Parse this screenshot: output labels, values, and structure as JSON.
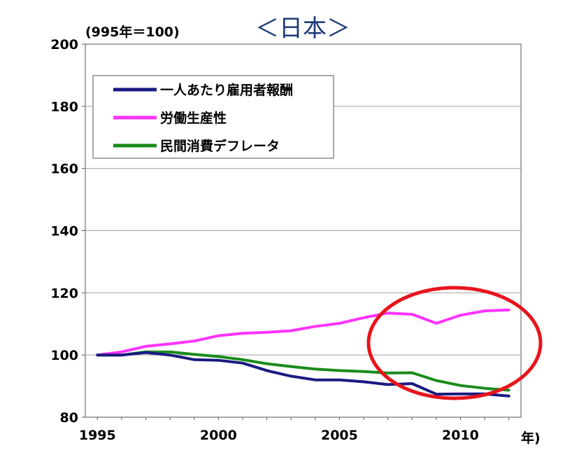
{
  "chart_data": {
    "type": "line",
    "title": "＜日本＞",
    "y_unit": "(995年＝100)",
    "x_unit": "年)",
    "ylim": [
      80,
      200
    ],
    "y_ticks": [
      80,
      100,
      120,
      140,
      160,
      180,
      200
    ],
    "x_ticks": [
      1995,
      2000,
      2005,
      2010
    ],
    "grid": true,
    "legend_position": "top-left",
    "x": [
      1995,
      1996,
      1997,
      1998,
      1999,
      2000,
      2001,
      2002,
      2003,
      2004,
      2005,
      2006,
      2007,
      2008,
      2009,
      2010,
      2011,
      2012
    ],
    "series": [
      {
        "name": "一人あたり雇用者報酬",
        "color": "#1a1a80",
        "values": [
          100,
          100,
          100.8,
          100,
          98.5,
          98.3,
          97.4,
          95,
          93.2,
          92,
          92,
          91.4,
          90.5,
          90.8,
          87.4,
          87.5,
          87.5,
          86.8
        ]
      },
      {
        "name": "労働生産性",
        "color": "#ff33ff",
        "values": [
          100,
          101,
          102.8,
          103.6,
          104.5,
          106.2,
          107,
          107.3,
          107.8,
          109.2,
          110.2,
          112,
          113.5,
          113.1,
          110.2,
          112.8,
          114.2,
          114.5
        ]
      },
      {
        "name": "民間消費デフレータ",
        "color": "#1a8c1a",
        "values": [
          100,
          100,
          101,
          101,
          100.2,
          99.5,
          98.5,
          97.2,
          96.3,
          95.5,
          95,
          94.7,
          94.2,
          94.3,
          91.8,
          90.2,
          89.3,
          88.7
        ]
      }
    ],
    "annotation": {
      "type": "ellipse",
      "color": "#e8141c"
    }
  }
}
